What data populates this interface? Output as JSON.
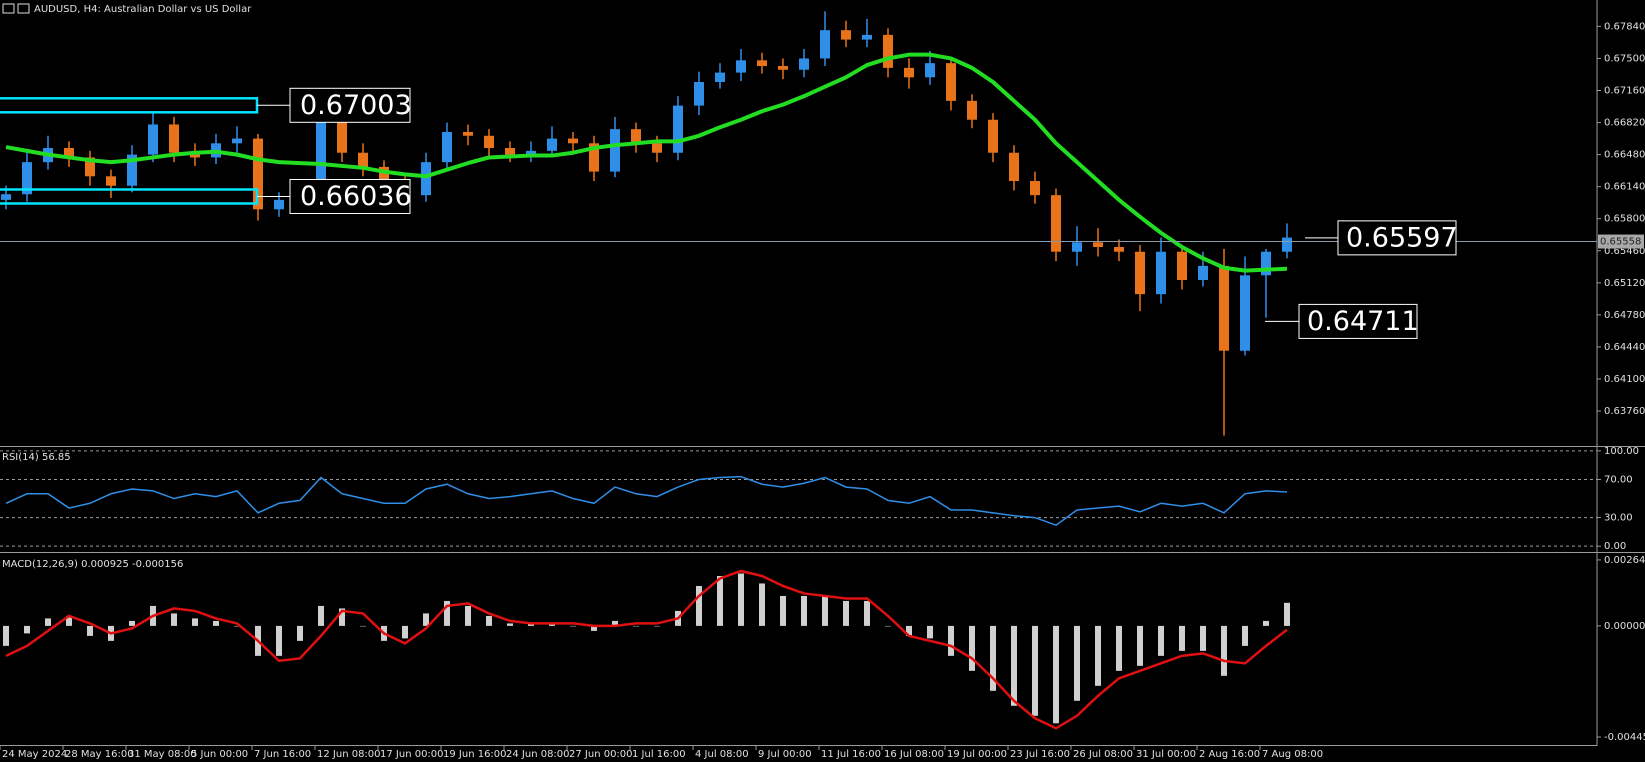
{
  "chart_data": [
    {
      "type": "candlestick",
      "title": "AUDUSD, H4:  Australian Dollar vs US Dollar",
      "up_color": "#2f8fe8",
      "down_color": "#e8731a",
      "open": [
        0.66,
        0.6606,
        0.664,
        0.6655,
        0.6645,
        0.6625,
        0.6615,
        0.6648,
        0.668,
        0.665,
        0.6645,
        0.666,
        0.6665,
        0.659,
        0.66,
        0.6608,
        0.669,
        0.665,
        0.6635,
        0.6618,
        0.6605,
        0.664,
        0.6672,
        0.6668,
        0.6655,
        0.6648,
        0.6652,
        0.6665,
        0.666,
        0.663,
        0.6675,
        0.666,
        0.665,
        0.67,
        0.6725,
        0.6735,
        0.6748,
        0.6742,
        0.6738,
        0.675,
        0.678,
        0.677,
        0.6775,
        0.674,
        0.673,
        0.6745,
        0.6705,
        0.6685,
        0.665,
        0.662,
        0.6605,
        0.6545,
        0.6555,
        0.655,
        0.6545,
        0.65,
        0.6545,
        0.6515,
        0.653,
        0.644,
        0.652,
        0.6545
      ],
      "high": [
        0.6615,
        0.665,
        0.6668,
        0.6662,
        0.6652,
        0.6632,
        0.6658,
        0.6692,
        0.6688,
        0.666,
        0.667,
        0.6678,
        0.667,
        0.6608,
        0.6615,
        0.6705,
        0.6695,
        0.666,
        0.6642,
        0.6625,
        0.665,
        0.6682,
        0.668,
        0.6675,
        0.6662,
        0.6662,
        0.6678,
        0.6672,
        0.6668,
        0.6688,
        0.6682,
        0.6668,
        0.671,
        0.6736,
        0.6745,
        0.676,
        0.6756,
        0.675,
        0.676,
        0.68,
        0.679,
        0.6792,
        0.6782,
        0.675,
        0.6758,
        0.6752,
        0.6712,
        0.6692,
        0.6658,
        0.663,
        0.6612,
        0.6572,
        0.657,
        0.6558,
        0.6552,
        0.656,
        0.6552,
        0.6545,
        0.6548,
        0.654,
        0.6548,
        0.6575
      ],
      "low": [
        0.659,
        0.6598,
        0.6632,
        0.6635,
        0.6615,
        0.6602,
        0.6608,
        0.664,
        0.664,
        0.6636,
        0.6638,
        0.665,
        0.6578,
        0.6582,
        0.6594,
        0.66,
        0.664,
        0.6625,
        0.6608,
        0.6596,
        0.6598,
        0.6632,
        0.6658,
        0.6645,
        0.664,
        0.664,
        0.6645,
        0.665,
        0.662,
        0.6624,
        0.665,
        0.664,
        0.6642,
        0.669,
        0.6718,
        0.6726,
        0.6734,
        0.6728,
        0.673,
        0.6742,
        0.6762,
        0.6762,
        0.673,
        0.6718,
        0.6722,
        0.6695,
        0.6676,
        0.664,
        0.661,
        0.6596,
        0.6535,
        0.653,
        0.654,
        0.6535,
        0.6482,
        0.649,
        0.6505,
        0.6508,
        0.635,
        0.6435,
        0.6475,
        0.6538
      ],
      "close": [
        0.6606,
        0.664,
        0.6655,
        0.6645,
        0.6625,
        0.6615,
        0.6648,
        0.668,
        0.665,
        0.6645,
        0.666,
        0.6665,
        0.659,
        0.66,
        0.6608,
        0.669,
        0.665,
        0.6635,
        0.6618,
        0.6605,
        0.664,
        0.6672,
        0.6668,
        0.6655,
        0.6648,
        0.6652,
        0.6665,
        0.666,
        0.663,
        0.6675,
        0.666,
        0.665,
        0.67,
        0.6725,
        0.6735,
        0.6748,
        0.6742,
        0.6738,
        0.675,
        0.678,
        0.677,
        0.6775,
        0.674,
        0.673,
        0.6745,
        0.6705,
        0.6685,
        0.665,
        0.662,
        0.6605,
        0.6545,
        0.6555,
        0.655,
        0.6545,
        0.65,
        0.6545,
        0.6515,
        0.653,
        0.644,
        0.652,
        0.6545,
        0.656
      ],
      "ma": {
        "color": "#22dd22",
        "values": [
          0.6656,
          0.6652,
          0.6648,
          0.6645,
          0.6642,
          0.664,
          0.6642,
          0.6645,
          0.6648,
          0.665,
          0.6651,
          0.6648,
          0.6643,
          0.664,
          0.6639,
          0.6638,
          0.6636,
          0.6634,
          0.663,
          0.6627,
          0.6625,
          0.6632,
          0.6639,
          0.6645,
          0.6646,
          0.6647,
          0.6647,
          0.665,
          0.6655,
          0.6658,
          0.666,
          0.6662,
          0.6662,
          0.6668,
          0.6677,
          0.6685,
          0.6694,
          0.6701,
          0.671,
          0.672,
          0.673,
          0.6743,
          0.675,
          0.6754,
          0.6754,
          0.675,
          0.674,
          0.6725,
          0.6705,
          0.6685,
          0.666,
          0.664,
          0.662,
          0.66,
          0.6582,
          0.6565,
          0.655,
          0.6538,
          0.6528,
          0.6525,
          0.6526,
          0.6527
        ]
      },
      "ylim": [
        0.634,
        0.6812
      ],
      "yticks": [
        {
          "value": 0.6784,
          "label": "0.67840"
        },
        {
          "value": 0.675,
          "label": "0.67500"
        },
        {
          "value": 0.6716,
          "label": "0.67160"
        },
        {
          "value": 0.6682,
          "label": "0.66820"
        },
        {
          "value": 0.6648,
          "label": "0.66480"
        },
        {
          "value": 0.6614,
          "label": "0.66140"
        },
        {
          "value": 0.658,
          "label": "0.65800"
        },
        {
          "value": 0.6546,
          "label": "0.65460"
        },
        {
          "value": 0.6512,
          "label": "0.65120"
        },
        {
          "value": 0.6478,
          "label": "0.64780"
        },
        {
          "value": 0.6444,
          "label": "0.64440"
        },
        {
          "value": 0.641,
          "label": "0.64100"
        },
        {
          "value": 0.6376,
          "label": "0.63760"
        }
      ],
      "xticks": [
        {
          "value": 0,
          "label": "24 May 2024"
        },
        {
          "value": 3,
          "label": "28 May 16:00"
        },
        {
          "value": 6,
          "label": "31 May 08:00"
        },
        {
          "value": 9,
          "label": "5 Jun 00:00"
        },
        {
          "value": 12,
          "label": "7 Jun 16:00"
        },
        {
          "value": 15,
          "label": "12 Jun 08:00"
        },
        {
          "value": 18,
          "label": "17 Jun 00:00"
        },
        {
          "value": 21,
          "label": "19 Jun 16:00"
        },
        {
          "value": 24,
          "label": "24 Jun 08:00"
        },
        {
          "value": 27,
          "label": "27 Jun 00:00"
        },
        {
          "value": 30,
          "label": "1 Jul 16:00"
        },
        {
          "value": 33,
          "label": "4 Jul 08:00"
        },
        {
          "value": 36,
          "label": "9 Jul 00:00"
        },
        {
          "value": 39,
          "label": "11 Jul 16:00"
        },
        {
          "value": 42,
          "label": "16 Jul 08:00"
        },
        {
          "value": 45,
          "label": "19 Jul 00:00"
        },
        {
          "value": 48,
          "label": "23 Jul 16:00"
        },
        {
          "value": 51,
          "label": "26 Jul 08:00"
        },
        {
          "value": 54,
          "label": "31 Jul 00:00"
        },
        {
          "value": 57,
          "label": "2 Aug 16:00"
        },
        {
          "value": 60,
          "label": "7 Aug 08:00"
        }
      ],
      "current_price": 0.65558,
      "zones": [
        0.67003,
        0.66036
      ],
      "labels": [
        0.65597,
        0.64711
      ],
      "grid": false
    },
    {
      "type": "line",
      "title": "RSI(14) 56.85",
      "series": [
        {
          "color": "#2f8fe8",
          "values": [
            45,
            55,
            55,
            40,
            45,
            55,
            60,
            58,
            50,
            55,
            52,
            58,
            35,
            45,
            48,
            72,
            55,
            50,
            45,
            45,
            60,
            65,
            55,
            50,
            52,
            55,
            58,
            50,
            45,
            62,
            55,
            52,
            62,
            70,
            72,
            73,
            65,
            62,
            66,
            72,
            62,
            60,
            48,
            45,
            52,
            38,
            38,
            35,
            32,
            30,
            22,
            38,
            40,
            42,
            36,
            45,
            42,
            45,
            35,
            55,
            58,
            56.85
          ]
        }
      ],
      "ylim": [
        -4,
        103
      ],
      "yticks": [
        {
          "value": 100,
          "label": "100.00"
        },
        {
          "value": 70,
          "label": "70.00"
        },
        {
          "value": 30,
          "label": "30.00"
        },
        {
          "value": 0,
          "label": "0.00"
        }
      ],
      "grid": true
    },
    {
      "type": "bar",
      "title": "MACD(12,26,9) 0.000925 -0.000156",
      "series": [
        {
          "color": "#d0d0d0",
          "values": [
            -0.0008,
            -0.0003,
            0.0003,
            0.0004,
            -0.0004,
            -0.0006,
            0.0002,
            0.0008,
            0.0005,
            0.0003,
            0.0002,
            0.0,
            -0.0012,
            -0.0012,
            -0.0006,
            0.0008,
            0.0007,
            0.0,
            -0.0006,
            -0.0005,
            0.0005,
            0.001,
            0.0008,
            0.0004,
            0.0001,
            0.0001,
            0.0001,
            0.0,
            -0.0002,
            0.0002,
            0.0,
            0.0,
            0.0006,
            0.0016,
            0.002,
            0.0021,
            0.0017,
            0.0012,
            0.0012,
            0.0012,
            0.001,
            0.001,
            0.0,
            -0.0004,
            -0.0005,
            -0.0012,
            -0.0018,
            -0.0026,
            -0.0032,
            -0.0036,
            -0.0039,
            -0.003,
            -0.0024,
            -0.0018,
            -0.0016,
            -0.0012,
            -0.001,
            -0.001,
            -0.002,
            -0.0008,
            0.0002,
            0.000925
          ]
        },
        {
          "color": "#e01010",
          "values": [
            -0.0012,
            -0.0008,
            -0.0002,
            0.0004,
            0.0001,
            -0.0003,
            -0.0001,
            0.0004,
            0.0007,
            0.0006,
            0.0003,
            0.0001,
            -0.0006,
            -0.0014,
            -0.0013,
            -0.0004,
            0.0006,
            0.0005,
            -0.0003,
            -0.0007,
            -0.0001,
            0.0008,
            0.0009,
            0.0005,
            0.0002,
            0.0001,
            0.0001,
            0.0001,
            0.0,
            0.0,
            0.0001,
            0.0001,
            0.0003,
            0.0012,
            0.0019,
            0.0022,
            0.002,
            0.0016,
            0.0013,
            0.0012,
            0.0011,
            0.0011,
            0.0004,
            -0.0004,
            -0.0006,
            -0.0008,
            -0.0013,
            -0.0021,
            -0.003,
            -0.0037,
            -0.0041,
            -0.0036,
            -0.0028,
            -0.0021,
            -0.0018,
            -0.0015,
            -0.0012,
            -0.0011,
            -0.0014,
            -0.0015,
            -0.0008,
            -0.000156
          ]
        }
      ],
      "ylim": [
        -0.00477,
        0.00284
      ],
      "yticks": [
        0.002643,
        {
          "value": 0,
          "label": "0.000000"
        },
        -0.004451
      ],
      "grid": false
    }
  ]
}
